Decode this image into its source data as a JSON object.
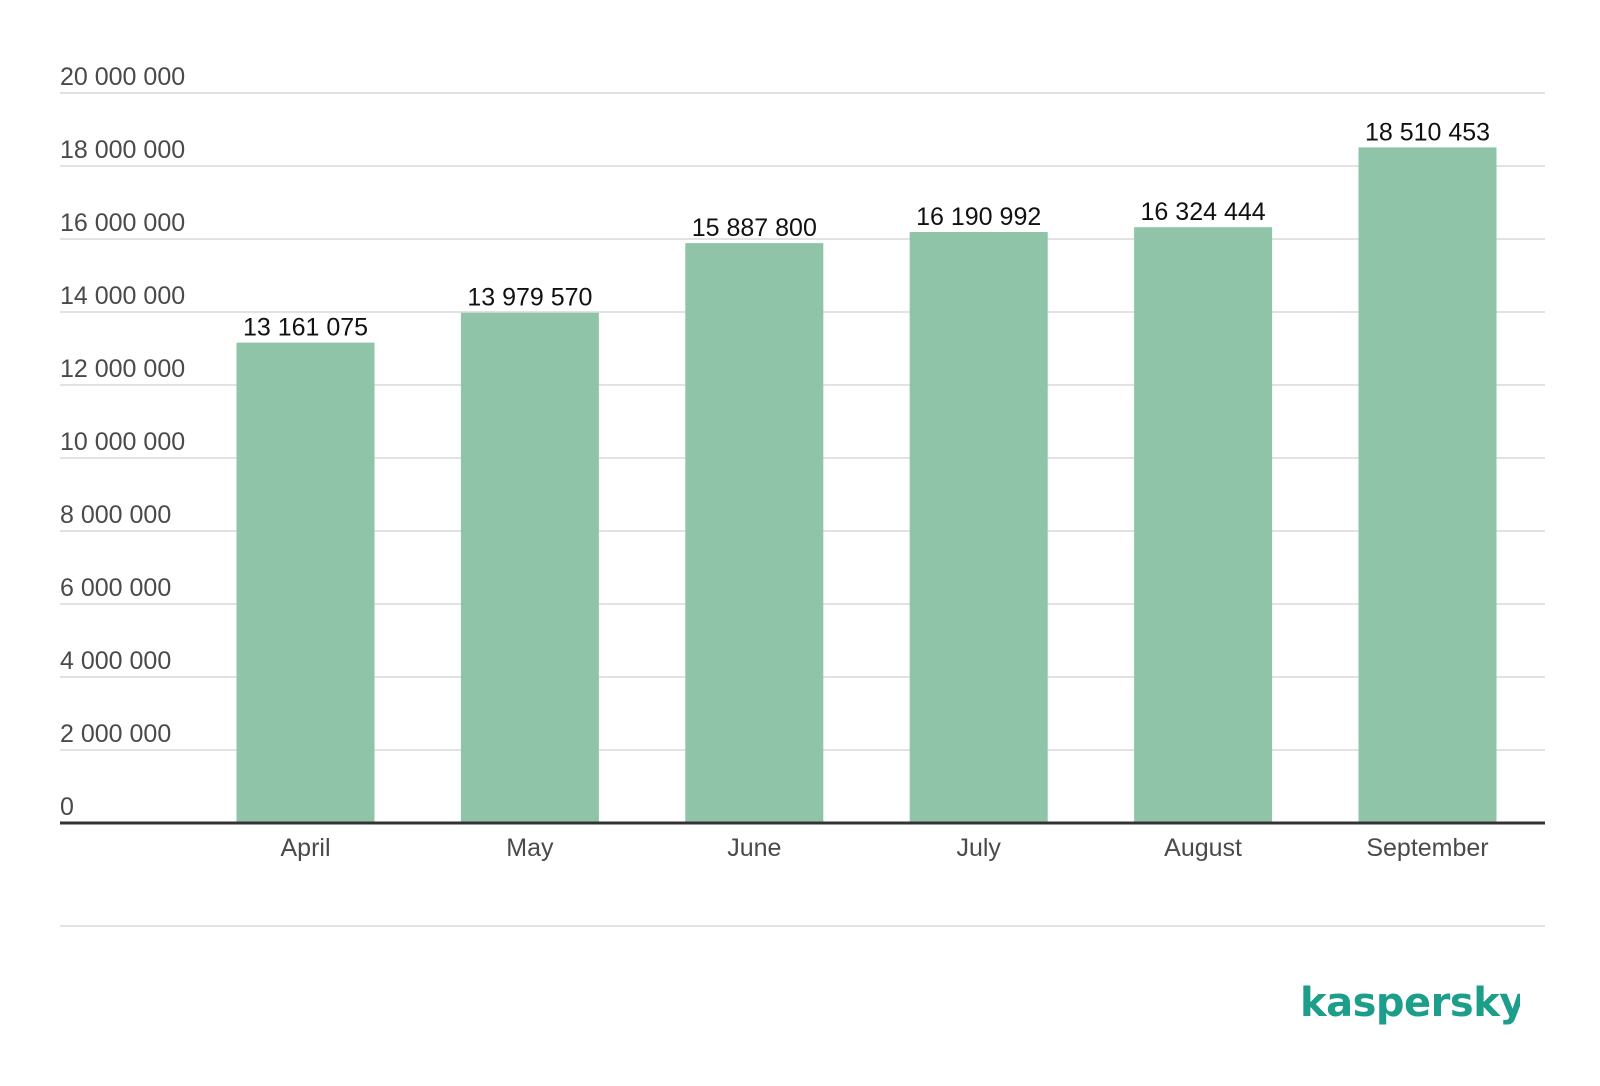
{
  "chart_data": {
    "type": "bar",
    "categories": [
      "April",
      "May",
      "June",
      "July",
      "August",
      "September"
    ],
    "values": [
      13161075,
      13979570,
      15887800,
      16190992,
      16324444,
      18510453
    ],
    "value_labels": [
      "13 161 075",
      "13 979 570",
      "15 887 800",
      "16 190 992",
      "16 324 444",
      "18 510 453"
    ],
    "yticks": [
      0,
      2000000,
      4000000,
      6000000,
      8000000,
      10000000,
      12000000,
      14000000,
      16000000,
      18000000,
      20000000
    ],
    "ytick_labels": [
      "0",
      "2 000 000",
      "4 000 000",
      "6 000 000",
      "8 000 000",
      "10 000 000",
      "12 000 000",
      "14 000 000",
      "16 000 000",
      "18 000 000",
      "20 000 000"
    ],
    "ylim": [
      0,
      20000000
    ],
    "grid": true,
    "colors": {
      "bar": "#8fc4a8",
      "grid": "#d9d9d9",
      "axis": "#333333"
    }
  },
  "brand": {
    "name": "kaspersky",
    "color": "#1d9e8a"
  }
}
